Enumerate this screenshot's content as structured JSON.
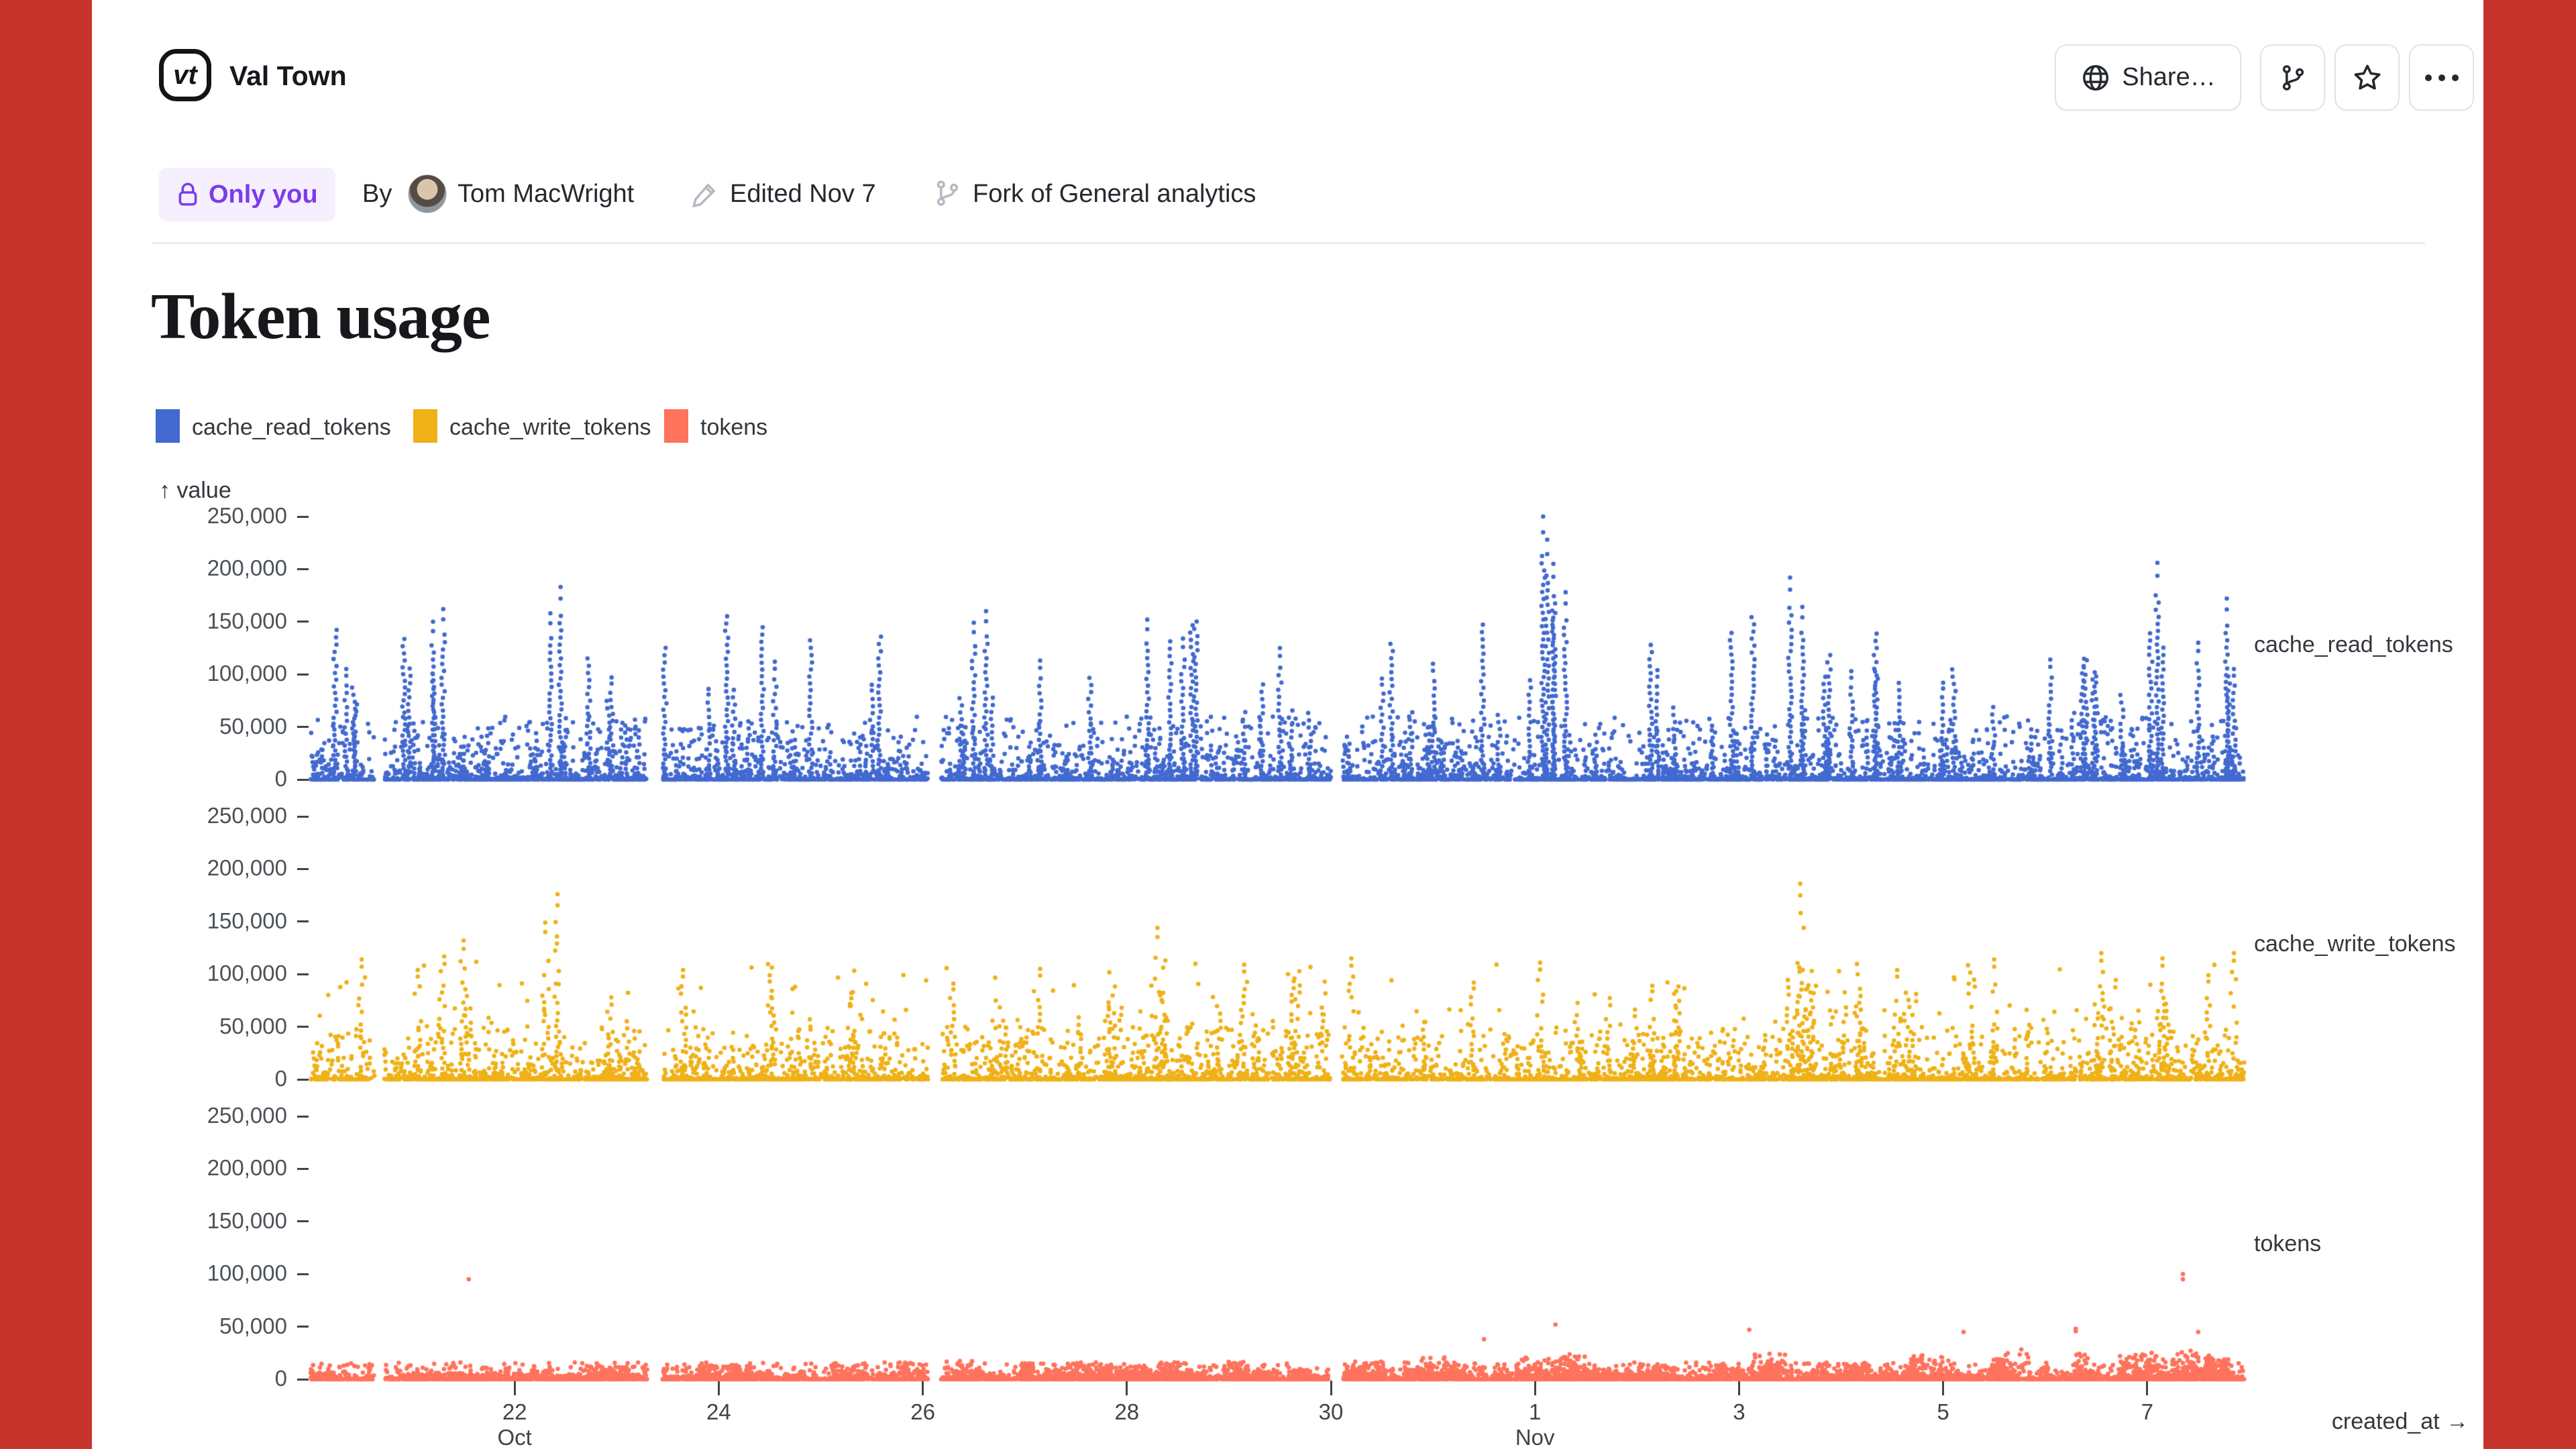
{
  "frame": {
    "background": "#c7342c",
    "sheet_background": "#ffffff"
  },
  "header": {
    "logo_text": "vt",
    "app_name": "Val Town",
    "share_label": "Share…"
  },
  "meta": {
    "visibility": "Only you",
    "by_label": "By",
    "author": "Tom MacWright",
    "edited": "Edited Nov 7",
    "fork_of": "Fork of General analytics",
    "badge_color": "#7d3bec",
    "badge_bg": "#f5effe"
  },
  "page": {
    "title": "Token usage"
  },
  "chart_data": {
    "type": "scatter",
    "title": "Token usage",
    "x_label": "created_at →",
    "y_label": "↑ value",
    "x_field": "created_at",
    "y_field": "value",
    "facet_field": "series",
    "grid": false,
    "legend_position": "top-left",
    "x_domain_days": [
      "Oct 20",
      "Nov 8"
    ],
    "y_domain": [
      0,
      250000
    ],
    "y_ticks": [
      {
        "value": 0,
        "label": "0"
      },
      {
        "value": 50000,
        "label": "50,000"
      },
      {
        "value": 100000,
        "label": "100,000"
      },
      {
        "value": 150000,
        "label": "150,000"
      },
      {
        "value": 200000,
        "label": "200,000"
      },
      {
        "value": 250000,
        "label": "250,000"
      }
    ],
    "x_ticks": [
      {
        "day": 2,
        "label": "22",
        "sub": "Oct"
      },
      {
        "day": 4,
        "label": "24"
      },
      {
        "day": 6,
        "label": "26"
      },
      {
        "day": 8,
        "label": "28"
      },
      {
        "day": 10,
        "label": "30"
      },
      {
        "day": 12,
        "label": "1",
        "sub": "Nov"
      },
      {
        "day": 14,
        "label": "3"
      },
      {
        "day": 16,
        "label": "5"
      },
      {
        "day": 18,
        "label": "7"
      }
    ],
    "gaps": [
      [
        0.62,
        0.72
      ],
      [
        3.3,
        3.45
      ],
      [
        6.05,
        6.18
      ],
      [
        10.0,
        10.12
      ]
    ],
    "facets": [
      {
        "name": "cache_read_tokens",
        "color": "#4269d0",
        "max_observed": 250000,
        "outlier_style": "streak",
        "outliers": [
          [
            0.35,
            105000
          ],
          [
            1.2,
            150000
          ],
          [
            1.3,
            162000
          ],
          [
            2.35,
            158000
          ],
          [
            2.45,
            183000
          ],
          [
            2.95,
            97000
          ],
          [
            3.9,
            86000
          ],
          [
            4.55,
            112000
          ],
          [
            5.5,
            90000
          ],
          [
            6.5,
            149000
          ],
          [
            6.62,
            160000
          ],
          [
            7.15,
            113000
          ],
          [
            8.2,
            152000
          ],
          [
            8.55,
            134000
          ],
          [
            9.5,
            125000
          ],
          [
            10.5,
            96000
          ],
          [
            11.0,
            110000
          ],
          [
            12.08,
            250000
          ],
          [
            12.12,
            228000
          ],
          [
            12.18,
            205000
          ],
          [
            12.3,
            178000
          ],
          [
            13.2,
            104000
          ],
          [
            14.5,
            192000
          ],
          [
            14.62,
            164000
          ],
          [
            15.1,
            103000
          ],
          [
            16.0,
            92000
          ],
          [
            17.05,
            114000
          ],
          [
            17.5,
            98000
          ],
          [
            18.1,
            206000
          ],
          [
            18.5,
            130000
          ],
          [
            18.78,
            172000
          ],
          [
            18.85,
            105000
          ]
        ],
        "gen": {
          "seed": 11,
          "n_base": 5200,
          "base_max": 60000,
          "base_pow": 6,
          "n_cols": 170,
          "col_min": 15000,
          "col_max": 160000,
          "col_pow": 2.6
        }
      },
      {
        "name": "cache_write_tokens",
        "color": "#efb118",
        "max_observed": 186000,
        "outlier_style": "streak",
        "sparse": true,
        "outliers": [
          [
            0.5,
            114000
          ],
          [
            1.05,
            104000
          ],
          [
            1.5,
            132000
          ],
          [
            2.3,
            149000
          ],
          [
            2.42,
            176000
          ],
          [
            3.65,
            104000
          ],
          [
            4.5,
            99000
          ],
          [
            5.3,
            82000
          ],
          [
            6.3,
            91000
          ],
          [
            7.15,
            105000
          ],
          [
            8.3,
            144000
          ],
          [
            9.15,
            109000
          ],
          [
            10.2,
            115000
          ],
          [
            11.4,
            92000
          ],
          [
            12.05,
            111000
          ],
          [
            13.15,
            89000
          ],
          [
            14.6,
            186000
          ],
          [
            15.55,
            104000
          ],
          [
            16.5,
            114000
          ],
          [
            17.55,
            120000
          ],
          [
            18.15,
            115000
          ],
          [
            18.6,
            99000
          ],
          [
            18.85,
            120000
          ]
        ],
        "gen": {
          "seed": 22,
          "n_base": 4200,
          "base_max": 50000,
          "base_pow": 6,
          "n_cols": 115,
          "col_min": 12000,
          "col_max": 118000,
          "col_pow": 2.5,
          "n_scatter": 520,
          "scatter_max": 112000,
          "scatter_pow": 3.2
        }
      },
      {
        "name": "tokens",
        "color": "#ff725c",
        "max_observed": 100000,
        "outlier_style": "single",
        "outliers": [
          [
            1.55,
            95000
          ],
          [
            18.35,
            100000
          ],
          [
            12.2,
            52000
          ],
          [
            14.1,
            47000
          ],
          [
            16.2,
            45000
          ],
          [
            17.3,
            48000
          ],
          [
            18.5,
            45000
          ],
          [
            11.5,
            38000
          ]
        ],
        "gen": {
          "seed": 33,
          "n_base": 5200,
          "base_max": 16000,
          "base_pow": 6,
          "n_cols": 110,
          "col_min": 3000,
          "col_max": 30000,
          "col_pow": 1.8,
          "ramp": true,
          "bumps": true
        }
      }
    ]
  }
}
